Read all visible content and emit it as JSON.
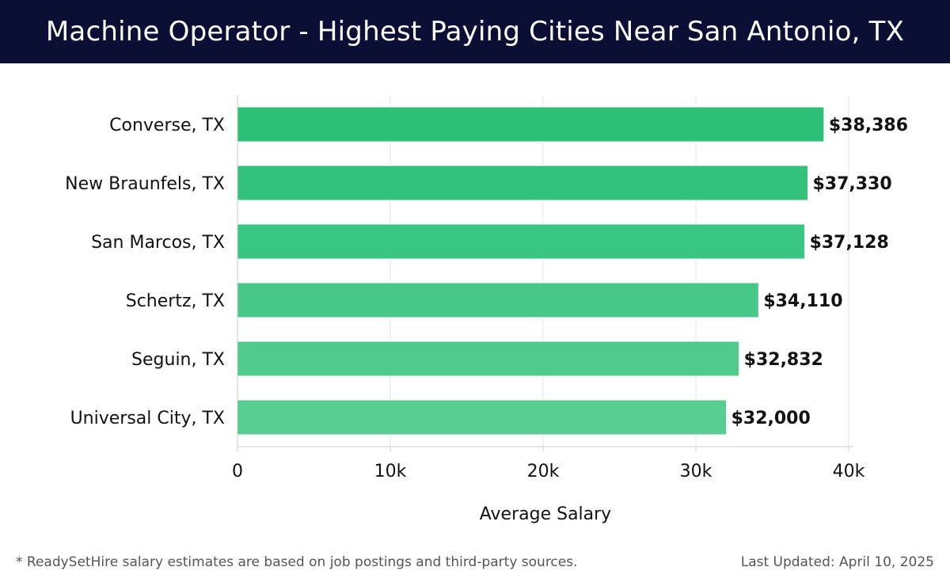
{
  "header": {
    "title": "Machine Operator - Highest Paying Cities Near San Antonio, TX"
  },
  "chart_data": {
    "type": "bar",
    "orientation": "horizontal",
    "categories": [
      "Converse, TX",
      "New Braunfels, TX",
      "San Marcos, TX",
      "Schertz, TX",
      "Seguin, TX",
      "Universal City, TX"
    ],
    "values": [
      38386,
      37330,
      37128,
      34110,
      32832,
      32000
    ],
    "value_labels": [
      "$38,386",
      "$37,330",
      "$37,128",
      "$34,110",
      "$32,832",
      "$32,000"
    ],
    "bar_colors": [
      "#2dc077",
      "#33c27b",
      "#39c47f",
      "#48c888",
      "#50cb8d",
      "#58cd92"
    ],
    "xlabel": "Average Salary",
    "ylabel": "",
    "xlim": [
      0,
      40000
    ],
    "x_ticks": [
      0,
      10000,
      20000,
      30000,
      40000
    ],
    "x_tick_labels": [
      "0",
      "10k",
      "20k",
      "30k",
      "40k"
    ],
    "grid": "vertical"
  },
  "footer": {
    "note": "* ReadySetHire salary estimates are based on job postings and third-party sources.",
    "updated": "Last Updated: April 10, 2025"
  }
}
